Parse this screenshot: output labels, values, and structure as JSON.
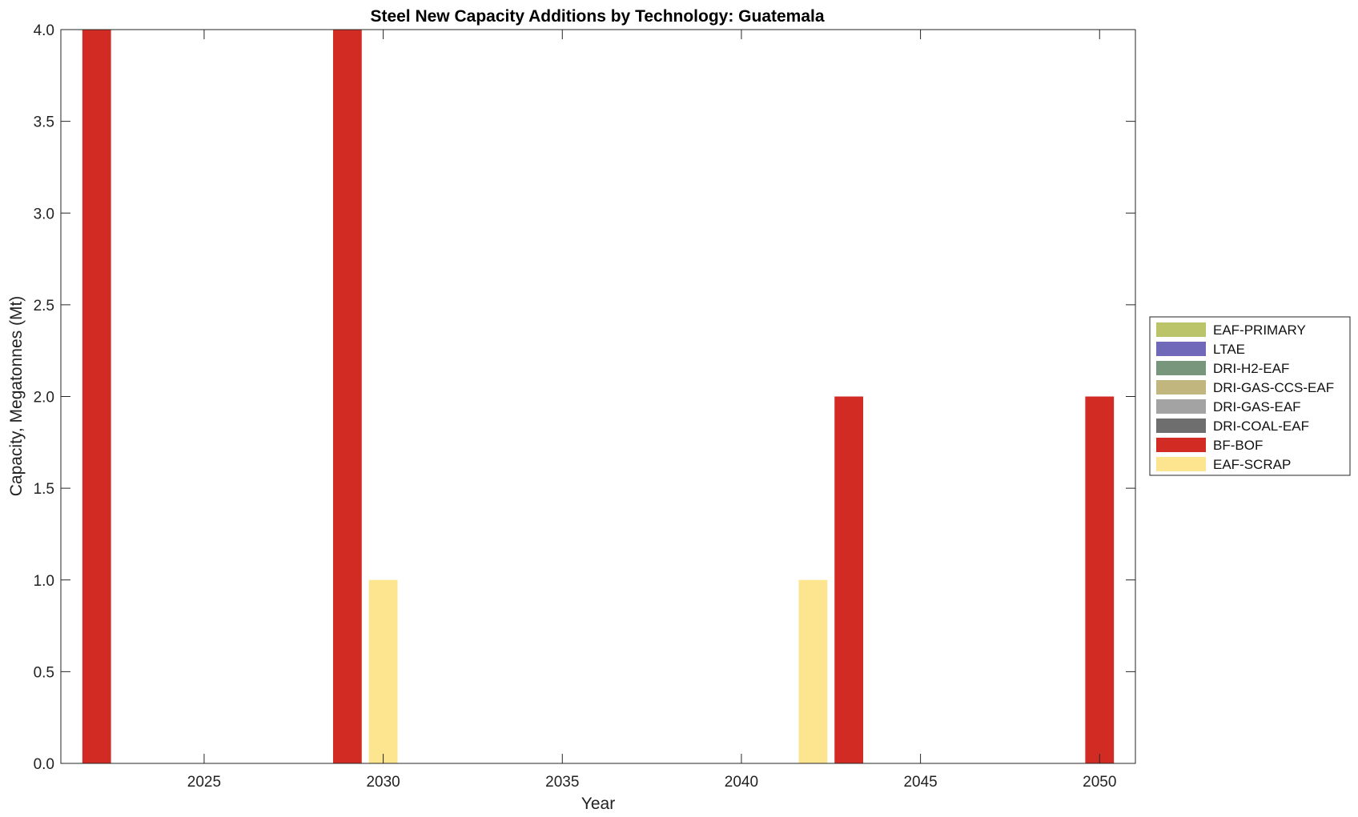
{
  "chart_data": {
    "type": "bar",
    "title": "Steel New Capacity Additions by Technology: Guatemala",
    "xlabel": "Year",
    "ylabel": "Capacity, Megatonnes (Mt)",
    "xlim": [
      2021,
      2051
    ],
    "ylim": [
      0,
      4
    ],
    "xticks": [
      2025,
      2030,
      2035,
      2040,
      2045,
      2050
    ],
    "yticks": [
      0.0,
      0.5,
      1.0,
      1.5,
      2.0,
      2.5,
      3.0,
      3.5,
      4.0
    ],
    "ytick_labels": [
      "0.0",
      "0.5",
      "1.0",
      "1.5",
      "2.0",
      "2.5",
      "3.0",
      "3.5",
      "4.0"
    ],
    "grid": false,
    "legend_position": "right-outside",
    "series": [
      {
        "name": "EAF-PRIMARY",
        "color": "#bcc46a",
        "values": []
      },
      {
        "name": "LTAE",
        "color": "#7068b8",
        "values": []
      },
      {
        "name": "DRI-H2-EAF",
        "color": "#77967c",
        "values": []
      },
      {
        "name": "DRI-GAS-CCS-EAF",
        "color": "#c1b77e",
        "values": []
      },
      {
        "name": "DRI-GAS-EAF",
        "color": "#a3a3a3",
        "values": []
      },
      {
        "name": "DRI-COAL-EAF",
        "color": "#6e6e6e",
        "values": []
      },
      {
        "name": "BF-BOF",
        "color": "#d22b24",
        "values": [
          {
            "year": 2022,
            "value": 4
          },
          {
            "year": 2029,
            "value": 4
          },
          {
            "year": 2043,
            "value": 2
          },
          {
            "year": 2050,
            "value": 2
          }
        ]
      },
      {
        "name": "EAF-SCRAP",
        "color": "#fde48f",
        "values": [
          {
            "year": 2030,
            "value": 1
          },
          {
            "year": 2042,
            "value": 1
          }
        ]
      }
    ]
  }
}
